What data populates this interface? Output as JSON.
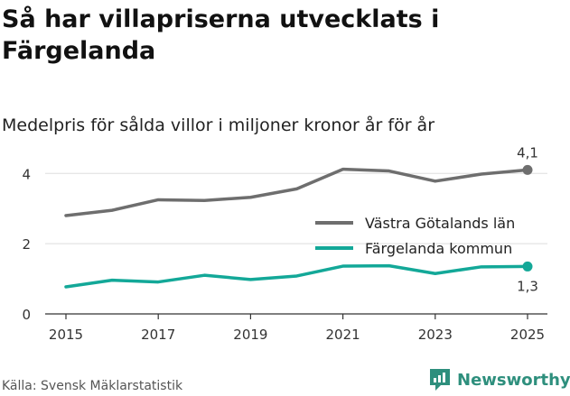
{
  "title": "Så har villapriserna utvecklats i Färgelanda",
  "subtitle": "Medelpris för sålda villor i miljoner kronor år för år",
  "source": "Källa: Svensk Mäklarstatistik",
  "brand": {
    "name": "Newsworthy",
    "icon": "newsworthy-logo-icon",
    "color": "#2e8f7d"
  },
  "chart_data": {
    "type": "line",
    "title": "Så har villapriserna utvecklats i Färgelanda",
    "subtitle": "Medelpris för sålda villor i miljoner kronor år för år",
    "xlabel": "",
    "ylabel": "",
    "x": [
      2015,
      2016,
      2017,
      2018,
      2019,
      2020,
      2021,
      2022,
      2023,
      2024,
      2025
    ],
    "xticks": [
      "2015",
      "2017",
      "2019",
      "2021",
      "2023",
      "2025"
    ],
    "xlim": [
      2015,
      2025
    ],
    "yticks": [
      "0",
      "2",
      "4"
    ],
    "ylim": [
      0,
      4.7
    ],
    "grid": true,
    "legend_position": "right",
    "series": [
      {
        "name": "Västra Götalands län",
        "color": "#6e6e6e",
        "values": [
          2.8,
          2.95,
          3.25,
          3.23,
          3.32,
          3.56,
          4.12,
          4.07,
          3.78,
          3.98,
          4.1
        ],
        "end_label": "4,1"
      },
      {
        "name": "Färgelanda kommun",
        "color": "#13a898",
        "values": [
          0.77,
          0.96,
          0.91,
          1.1,
          0.98,
          1.08,
          1.36,
          1.37,
          1.15,
          1.34,
          1.35
        ],
        "end_label": "1,3"
      }
    ]
  }
}
